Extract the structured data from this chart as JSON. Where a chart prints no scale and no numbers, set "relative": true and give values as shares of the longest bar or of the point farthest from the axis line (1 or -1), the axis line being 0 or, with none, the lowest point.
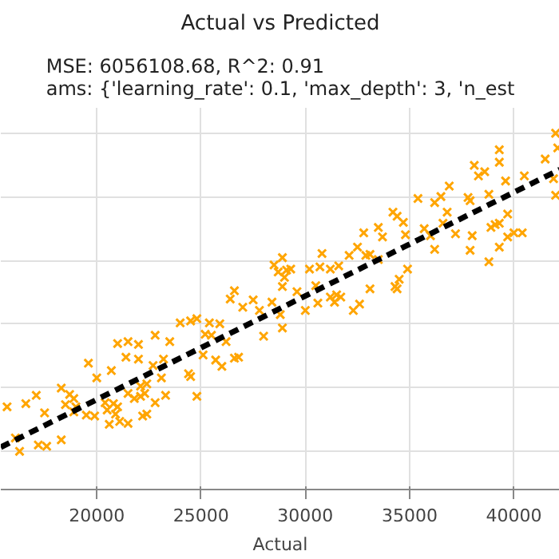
{
  "chart_data": {
    "type": "scatter",
    "title": "Actual vs Predicted",
    "subtitle": "MSE: 6056108.68, R^2: 0.91\nams: {'learning_rate': 0.1, 'max_depth': 3, 'n_est",
    "xlabel": "Actual",
    "relative": true,
    "xlim": [
      15400,
      42200
    ],
    "xticks": [
      20000,
      25000,
      30000,
      35000,
      40000
    ],
    "grid": true,
    "marker": "cross",
    "series": [
      {
        "color": "#ffa500",
        "x": [
          15700,
          16600,
          17100,
          17500,
          16100,
          17200,
          17600,
          16300,
          18300,
          18300,
          18700,
          18900,
          18500,
          19000,
          18900,
          19500,
          19900,
          19600,
          20000,
          20700,
          20400,
          20800,
          20500,
          20900,
          20600,
          21100,
          21500,
          21000,
          21500,
          21800,
          22100,
          22300,
          22100,
          22400,
          22800,
          22200,
          22400,
          23300,
          23100,
          23200,
          22800,
          23500,
          21000,
          21500,
          22000,
          21400,
          22000,
          22700,
          24400,
          24500,
          24800,
          24000,
          24500,
          24800,
          25400,
          25200,
          25500,
          25900,
          25100,
          25700,
          26000,
          26200,
          26600,
          26800,
          26400,
          26600,
          27000,
          27500,
          27800,
          28000,
          28500,
          28700,
          28400,
          28900,
          29100,
          29300,
          29000,
          28900,
          28800,
          28900,
          29600,
          30000,
          30200,
          30700,
          30800,
          31200,
          31600,
          30500,
          30600,
          31200,
          31500,
          31400,
          31700,
          32100,
          32500,
          32800,
          32900,
          33100,
          33500,
          33700,
          33500,
          33100,
          32300,
          32600,
          34200,
          34400,
          34700,
          34800,
          34900,
          34400,
          34500,
          34300,
          35400,
          35700,
          36000,
          36200,
          36500,
          36600,
          36200,
          36900,
          36800,
          37200,
          37800,
          37900,
          37900,
          38000,
          38800,
          38900,
          38800,
          39100,
          39300,
          39700,
          39700,
          40000,
          40400,
          39300,
          38100,
          38300,
          38600,
          39300,
          39300,
          39600,
          40500,
          41500,
          41900,
          42000,
          42000,
          42100
        ],
        "values": [
          0.14,
          0.15,
          0.176,
          0.121,
          0.042,
          0.02,
          0.016,
          0,
          0.036,
          0.199,
          0.179,
          0.166,
          0.147,
          0.14,
          0.124,
          0.114,
          0.111,
          0.277,
          0.231,
          0.254,
          0.153,
          0.15,
          0.13,
          0.117,
          0.085,
          0.094,
          0.088,
          0.14,
          0.182,
          0.166,
          0.173,
          0.182,
          0.205,
          0.212,
          0.153,
          0.111,
          0.117,
          0.176,
          0.231,
          0.29,
          0.365,
          0.345,
          0.339,
          0.345,
          0.336,
          0.296,
          0.29,
          0.27,
          0.244,
          0.235,
          0.173,
          0.404,
          0.41,
          0.417,
          0.404,
          0.368,
          0.365,
          0.401,
          0.303,
          0.287,
          0.267,
          0.345,
          0.293,
          0.296,
          0.479,
          0.505,
          0.453,
          0.476,
          0.443,
          0.362,
          0.586,
          0.564,
          0.469,
          0.609,
          0.57,
          0.573,
          0.547,
          0.518,
          0.43,
          0.388,
          0.502,
          0.443,
          0.573,
          0.58,
          0.622,
          0.573,
          0.583,
          0.521,
          0.466,
          0.485,
          0.492,
          0.469,
          0.485,
          0.616,
          0.642,
          0.687,
          0.616,
          0.619,
          0.704,
          0.674,
          0.603,
          0.511,
          0.443,
          0.463,
          0.752,
          0.739,
          0.72,
          0.681,
          0.573,
          0.511,
          0.541,
          0.518,
          0.795,
          0.7,
          0.678,
          0.635,
          0.801,
          0.717,
          0.782,
          0.834,
          0.752,
          0.684,
          0.798,
          0.788,
          0.632,
          0.678,
          0.808,
          0.704,
          0.596,
          0.713,
          0.642,
          0.746,
          0.674,
          0.687,
          0.687,
          0.717,
          0.899,
          0.866,
          0.879,
          0.948,
          0.909,
          0.85,
          0.866,
          0.919,
          0.857,
          0.805,
          1,
          0.954
        ]
      },
      {
        "type": "line",
        "color": "#000000",
        "line_style": "dashed",
        "marker": "none",
        "x": [
          15400,
          42200
        ],
        "values": [
          0.013,
          0.886
        ]
      }
    ]
  }
}
